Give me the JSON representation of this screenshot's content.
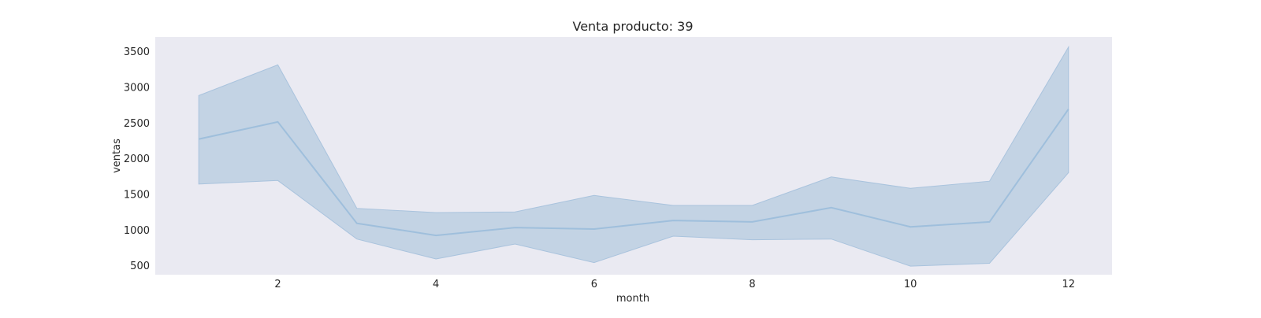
{
  "chart_data": {
    "type": "line",
    "title": "Venta producto: 39",
    "xlabel": "month",
    "ylabel": "ventas",
    "xlim": [
      0.45,
      12.55
    ],
    "ylim": [
      370,
      3700
    ],
    "x_ticks": [
      2,
      4,
      6,
      8,
      10,
      12
    ],
    "y_ticks": [
      500,
      1000,
      1500,
      2000,
      2500,
      3000,
      3500
    ],
    "grid": false,
    "colors": {
      "plot_background": "#eaeaf2",
      "line": "#9fbfdc",
      "band": "#c3d3e4",
      "band_edge": "#a9c3dd"
    },
    "series": [
      {
        "x": [
          1,
          2,
          3,
          4,
          5,
          6,
          7,
          8,
          9,
          10,
          11,
          12
        ],
        "y": [
          2270,
          2510,
          1090,
          920,
          1030,
          1010,
          1130,
          1110,
          1310,
          1040,
          1110,
          2690
        ],
        "lower": [
          1640,
          1690,
          870,
          590,
          800,
          540,
          910,
          860,
          870,
          490,
          530,
          1800
        ],
        "upper": [
          2880,
          3310,
          1300,
          1240,
          1250,
          1480,
          1340,
          1340,
          1740,
          1580,
          1680,
          3560
        ]
      }
    ]
  }
}
